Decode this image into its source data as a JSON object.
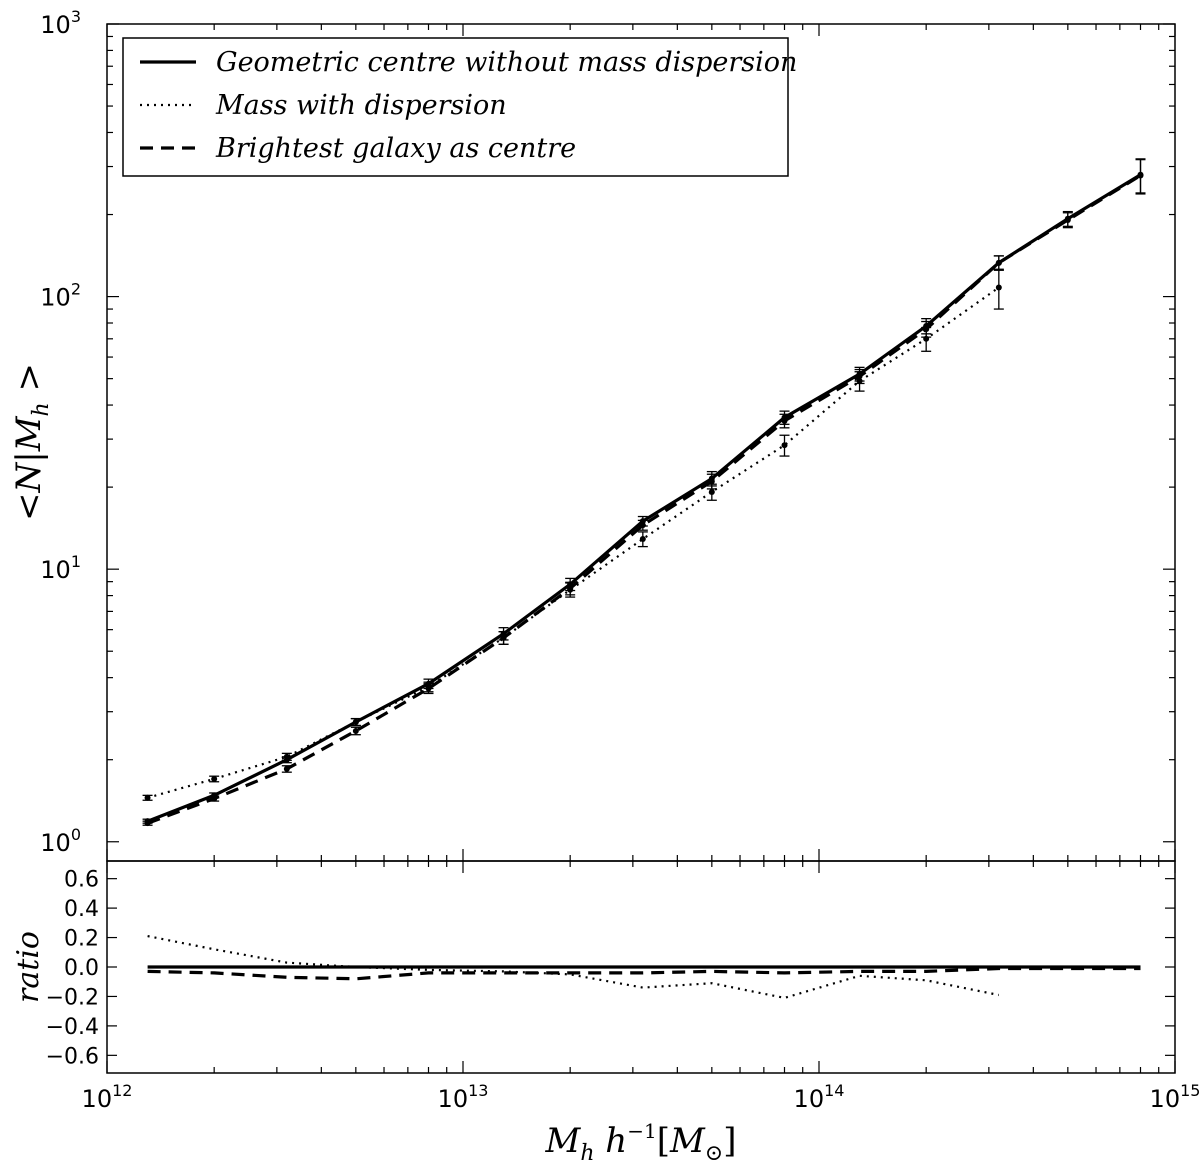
{
  "chart_data": [
    {
      "type": "line",
      "panel": "main",
      "xscale": "log",
      "yscale": "log",
      "xlim": [
        1000000000000.0,
        1000000000000000.0
      ],
      "ylim": [
        0.85,
        1000
      ],
      "ylabel": "<N|M_h>",
      "yticks": [
        {
          "value": 1,
          "base": "10",
          "exp": "0"
        },
        {
          "value": 10,
          "base": "10",
          "exp": "1"
        },
        {
          "value": 100,
          "base": "10",
          "exp": "2"
        },
        {
          "value": 1000,
          "base": "10",
          "exp": "3"
        }
      ],
      "legend_position": "top-left",
      "series": [
        {
          "name": "Geometric centre without mass dispersion",
          "style": "solid",
          "x": [
            1300000000000.0,
            2000000000000.0,
            3200000000000.0,
            5000000000000.0,
            8000000000000.0,
            13000000000000.0,
            20000000000000.0,
            32000000000000.0,
            50000000000000.0,
            80000000000000.0,
            130000000000000.0,
            200000000000000.0,
            320000000000000.0,
            500000000000000.0,
            800000000000000.0
          ],
          "y": [
            1.19,
            1.48,
            2.0,
            2.75,
            3.8,
            5.8,
            8.8,
            15,
            21.5,
            36,
            52,
            78,
            133,
            193,
            280
          ],
          "yerr": [
            0.02,
            0.03,
            0.05,
            0.08,
            0.15,
            0.3,
            0.45,
            0.6,
            1.3,
            2.0,
            3.0,
            5.0,
            8.0,
            12.0,
            40
          ]
        },
        {
          "name": "Mass with dispersion",
          "style": "dotted",
          "x": [
            1300000000000.0,
            2000000000000.0,
            3200000000000.0,
            5000000000000.0,
            8000000000000.0,
            13000000000000.0,
            20000000000000.0,
            32000000000000.0,
            50000000000000.0,
            80000000000000.0,
            130000000000000.0,
            200000000000000.0,
            320000000000000.0
          ],
          "y": [
            1.45,
            1.7,
            2.05,
            2.75,
            3.7,
            5.6,
            8.4,
            12.9,
            19.2,
            28.5,
            49,
            70,
            108
          ],
          "yerr": [
            0.03,
            0.04,
            0.06,
            0.08,
            0.15,
            0.3,
            0.5,
            0.8,
            1.3,
            2.5,
            4.0,
            7.0,
            18.0
          ]
        },
        {
          "name": "Brightest galaxy as centre",
          "style": "dashed",
          "x": [
            1300000000000.0,
            2000000000000.0,
            3200000000000.0,
            5000000000000.0,
            8000000000000.0,
            13000000000000.0,
            20000000000000.0,
            32000000000000.0,
            50000000000000.0,
            80000000000000.0,
            130000000000000.0,
            200000000000000.0,
            320000000000000.0,
            500000000000000.0,
            800000000000000.0
          ],
          "y": [
            1.17,
            1.44,
            1.85,
            2.55,
            3.65,
            5.6,
            8.5,
            14.5,
            21.0,
            35.0,
            51,
            76,
            133,
            191,
            278
          ],
          "yerr": [
            0.02,
            0.03,
            0.05,
            0.08,
            0.15,
            0.3,
            0.45,
            0.6,
            1.3,
            2.0,
            3.0,
            5.0,
            8.0,
            12.0,
            40
          ]
        }
      ]
    },
    {
      "type": "line",
      "panel": "ratio",
      "xscale": "log",
      "xlim": [
        1000000000000.0,
        1000000000000000.0
      ],
      "ylim": [
        -0.72,
        0.72
      ],
      "ylabel": "ratio",
      "xlabel": "M_h h^-1 [M_sun]",
      "xticks": [
        {
          "value": 1000000000000.0,
          "base": "10",
          "exp": "12"
        },
        {
          "value": 10000000000000.0,
          "base": "10",
          "exp": "13"
        },
        {
          "value": 100000000000000.0,
          "base": "10",
          "exp": "14"
        },
        {
          "value": 1000000000000000.0,
          "base": "10",
          "exp": "15"
        }
      ],
      "yticks": [
        "0.6",
        "0.4",
        "0.2",
        "0.0",
        "−0.2",
        "−0.4",
        "−0.6"
      ],
      "series": [
        {
          "style": "solid",
          "x": [
            1300000000000.0,
            2000000000000.0,
            3200000000000.0,
            5000000000000.0,
            8000000000000.0,
            13000000000000.0,
            20000000000000.0,
            32000000000000.0,
            50000000000000.0,
            80000000000000.0,
            130000000000000.0,
            200000000000000.0,
            320000000000000.0,
            500000000000000.0,
            800000000000000.0
          ],
          "y": [
            0,
            0,
            0,
            0,
            0,
            0,
            0,
            0,
            0,
            0,
            0,
            0,
            0,
            0,
            0
          ]
        },
        {
          "style": "dotted",
          "x": [
            1300000000000.0,
            2000000000000.0,
            3200000000000.0,
            5000000000000.0,
            8000000000000.0,
            13000000000000.0,
            20000000000000.0,
            32000000000000.0,
            50000000000000.0,
            80000000000000.0,
            130000000000000.0,
            200000000000000.0,
            320000000000000.0
          ],
          "y": [
            0.21,
            0.12,
            0.03,
            0.0,
            -0.02,
            -0.03,
            -0.05,
            -0.14,
            -0.11,
            -0.21,
            -0.06,
            -0.09,
            -0.19
          ]
        },
        {
          "style": "dashed",
          "x": [
            1300000000000.0,
            2000000000000.0,
            3200000000000.0,
            5000000000000.0,
            8000000000000.0,
            13000000000000.0,
            20000000000000.0,
            32000000000000.0,
            50000000000000.0,
            80000000000000.0,
            130000000000000.0,
            200000000000000.0,
            320000000000000.0,
            500000000000000.0,
            800000000000000.0
          ],
          "y": [
            -0.03,
            -0.04,
            -0.07,
            -0.08,
            -0.04,
            -0.04,
            -0.04,
            -0.04,
            -0.03,
            -0.04,
            -0.03,
            -0.03,
            -0.01,
            -0.01,
            -0.01
          ]
        }
      ]
    }
  ]
}
